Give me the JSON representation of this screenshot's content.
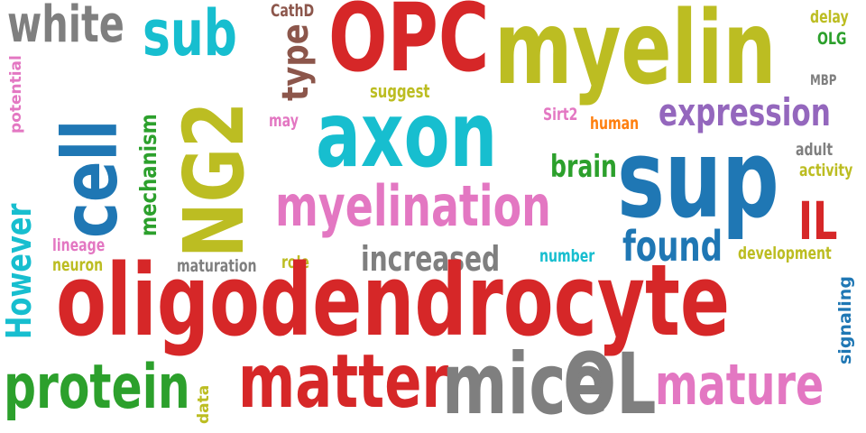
{
  "word_cloud": {
    "words": {
      "white": {
        "text": "white",
        "color": "#7f7f7f"
      },
      "sub": {
        "text": "sub",
        "color": "#17becf"
      },
      "CathD": {
        "text": "CathD",
        "color": "#8c564b"
      },
      "OPC": {
        "text": "OPC",
        "color": "#d62728"
      },
      "myelin": {
        "text": "myelin",
        "color": "#bcbd22"
      },
      "delay": {
        "text": "delay",
        "color": "#bcbd22"
      },
      "OLG": {
        "text": "OLG",
        "color": "#2ca02c"
      },
      "MBP": {
        "text": "MBP",
        "color": "#7f7f7f"
      },
      "potential": {
        "text": "potential",
        "color": "#e377c2"
      },
      "type": {
        "text": "type",
        "color": "#8c564b"
      },
      "suggest": {
        "text": "suggest",
        "color": "#bcbd22"
      },
      "expression": {
        "text": "expression",
        "color": "#9467bd"
      },
      "cell": {
        "text": "cell",
        "color": "#1f77b4"
      },
      "NG2": {
        "text": "NG2",
        "color": "#bcbd22"
      },
      "may": {
        "text": "may",
        "color": "#e377c2"
      },
      "axon": {
        "text": "axon",
        "color": "#17becf"
      },
      "Sirt2": {
        "text": "Sirt2",
        "color": "#e377c2"
      },
      "human": {
        "text": "human",
        "color": "#ff7f0e"
      },
      "adult": {
        "text": "adult",
        "color": "#7f7f7f"
      },
      "activity": {
        "text": "activity",
        "color": "#bcbd22"
      },
      "brain": {
        "text": "brain",
        "color": "#2ca02c"
      },
      "sup": {
        "text": "sup",
        "color": "#1f77b4"
      },
      "mechanism": {
        "text": "mechanism",
        "color": "#2ca02c"
      },
      "However": {
        "text": "However",
        "color": "#17becf"
      },
      "myelination": {
        "text": "myelination",
        "color": "#e377c2"
      },
      "IL": {
        "text": "IL",
        "color": "#d62728"
      },
      "found": {
        "text": "found",
        "color": "#1f77b4"
      },
      "lineage": {
        "text": "lineage",
        "color": "#e377c2"
      },
      "neuron": {
        "text": "neuron",
        "color": "#bcbd22"
      },
      "increased": {
        "text": "increased",
        "color": "#7f7f7f"
      },
      "number": {
        "text": "number",
        "color": "#17becf"
      },
      "development": {
        "text": "development",
        "color": "#bcbd22"
      },
      "maturation": {
        "text": "maturation",
        "color": "#7f7f7f"
      },
      "role": {
        "text": "role",
        "color": "#bcbd22"
      },
      "oligodendrocyte": {
        "text": "oligodendrocyte",
        "color": "#d62728"
      },
      "signaling": {
        "text": "signaling",
        "color": "#1f77b4"
      },
      "protein": {
        "text": "protein",
        "color": "#2ca02c"
      },
      "data": {
        "text": "data",
        "color": "#bcbd22"
      },
      "matter": {
        "text": "matter",
        "color": "#d62728"
      },
      "mice": {
        "text": "mice",
        "color": "#7f7f7f"
      },
      "OL": {
        "text": "OL",
        "color": "#7f7f7f"
      },
      "mature": {
        "text": "mature",
        "color": "#e377c2"
      }
    }
  }
}
